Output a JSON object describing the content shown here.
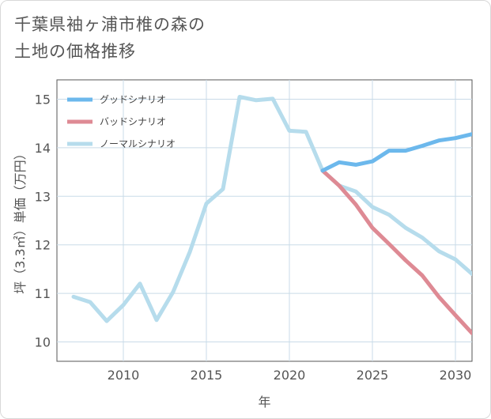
{
  "title": "千葉県袖ヶ浦市椎の森の\n土地の価格推移",
  "chart_data": {
    "type": "line",
    "xlabel": "年",
    "ylabel": "坪（3.3㎡）単価（万円）",
    "xlim": [
      2006,
      2031
    ],
    "ylim": [
      9.6,
      15.4
    ],
    "xticks": [
      2010,
      2015,
      2020,
      2025,
      2030
    ],
    "yticks": [
      10,
      11,
      12,
      13,
      14,
      15
    ],
    "grid": true,
    "legend_position": "top-left",
    "series": [
      {
        "name": "グッドシナリオ",
        "color": "#6cb8ec",
        "x": [
          2022,
          2023,
          2024,
          2025,
          2026,
          2027,
          2028,
          2029,
          2030,
          2031
        ],
        "values": [
          13.53,
          13.7,
          13.65,
          13.72,
          13.94,
          13.94,
          14.04,
          14.15,
          14.2,
          14.28
        ]
      },
      {
        "name": "バッドシナリオ",
        "color": "#de8a94",
        "x": [
          2022,
          2023,
          2024,
          2025,
          2026,
          2027,
          2028,
          2029,
          2030,
          2031
        ],
        "values": [
          13.53,
          13.22,
          12.83,
          12.35,
          12.02,
          11.68,
          11.37,
          10.93,
          10.55,
          10.18
        ]
      },
      {
        "name": "ノーマルシナリオ",
        "color": "#b6dcec",
        "x": [
          2007,
          2008,
          2009,
          2010,
          2011,
          2012,
          2013,
          2014,
          2015,
          2016,
          2017,
          2018,
          2019,
          2020,
          2021,
          2022,
          2023,
          2024,
          2025,
          2026,
          2027,
          2028,
          2029,
          2030,
          2031
        ],
        "values": [
          10.93,
          10.82,
          10.43,
          10.76,
          11.2,
          10.45,
          11.03,
          11.85,
          12.85,
          13.15,
          15.05,
          14.98,
          15.01,
          14.35,
          14.33,
          13.53,
          13.22,
          13.1,
          12.78,
          12.62,
          12.35,
          12.15,
          11.87,
          11.7,
          11.4
        ]
      }
    ]
  }
}
